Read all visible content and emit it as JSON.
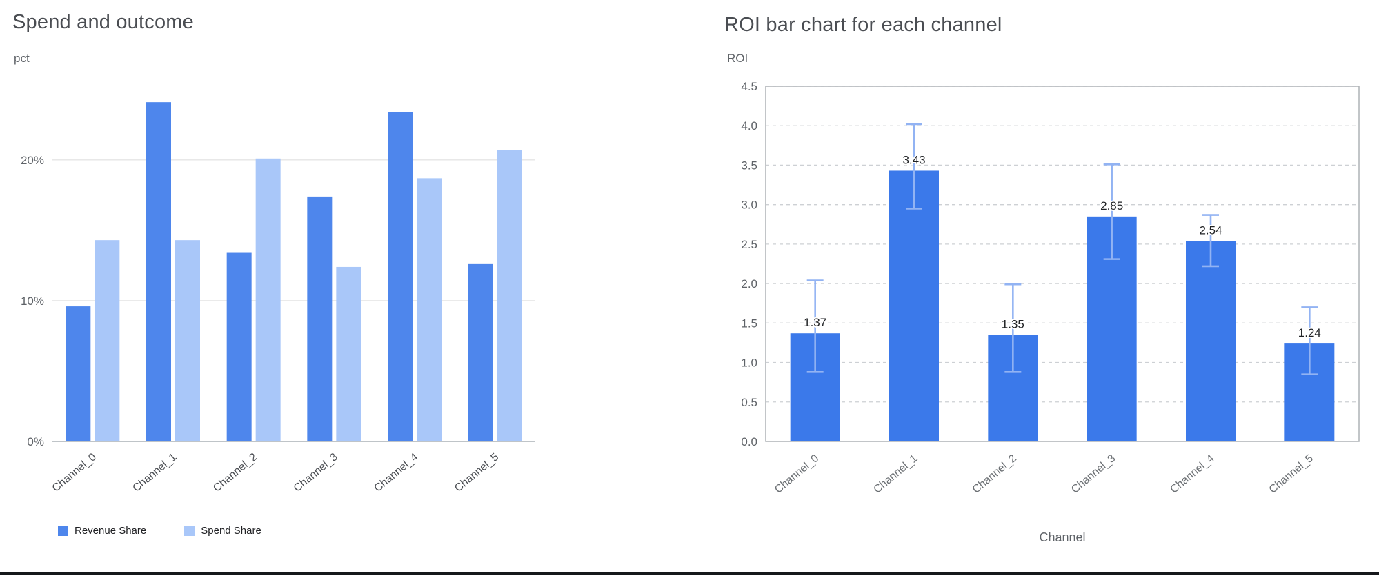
{
  "page": {
    "background": "#ffffff"
  },
  "colors": {
    "revenue_bar": "#4e86ec",
    "spend_bar": "#a9c7f9",
    "roi_bar": "#3b79ea",
    "error_bar": "#92b3f3",
    "gridline_solid": "#e4e4e4",
    "gridline_dashed": "#cdd0d4",
    "axis_line": "#aab0b5",
    "plot_border": "#aeb2b6"
  },
  "chart_data": [
    {
      "type": "bar",
      "title": "Spend and outcome",
      "ylabel": "pct",
      "xlabel": "",
      "categories": [
        "Channel_0",
        "Channel_1",
        "Channel_2",
        "Channel_3",
        "Channel_4",
        "Channel_5"
      ],
      "series": [
        {
          "name": "Revenue Share",
          "color": "#4e86ec",
          "values": [
            9.6,
            24.1,
            13.4,
            17.4,
            23.4,
            12.6
          ]
        },
        {
          "name": "Spend Share",
          "color": "#a9c7f9",
          "values": [
            14.3,
            14.3,
            20.1,
            12.4,
            18.7,
            20.7
          ]
        }
      ],
      "ylim": [
        0,
        24.5
      ],
      "yticks": [
        0,
        10,
        20
      ],
      "ytick_labels": [
        "0%",
        "10%",
        "20%"
      ],
      "grid": "solid",
      "legend_position": "bottom"
    },
    {
      "type": "bar",
      "title": "ROI bar chart for each channel",
      "ylabel": "ROI",
      "xlabel": "Channel",
      "categories": [
        "Channel_0",
        "Channel_1",
        "Channel_2",
        "Channel_3",
        "Channel_4",
        "Channel_5"
      ],
      "values": [
        1.37,
        3.43,
        1.35,
        2.85,
        2.54,
        1.24
      ],
      "data_labels": [
        "1.37",
        "3.43",
        "1.35",
        "2.85",
        "2.54",
        "1.24"
      ],
      "error_low": [
        0.88,
        2.95,
        0.88,
        2.31,
        2.22,
        0.85
      ],
      "error_high": [
        2.04,
        4.02,
        1.99,
        3.51,
        2.87,
        1.7
      ],
      "ylim": [
        0,
        4.5
      ],
      "yticks": [
        0,
        0.5,
        1.0,
        1.5,
        2.0,
        2.5,
        3.0,
        3.5,
        4.0,
        4.5
      ],
      "ytick_labels": [
        "0.0",
        "0.5",
        "1.0",
        "1.5",
        "2.0",
        "2.5",
        "3.0",
        "3.5",
        "4.0",
        "4.5"
      ],
      "grid": "dashed",
      "legend_position": "none"
    }
  ]
}
